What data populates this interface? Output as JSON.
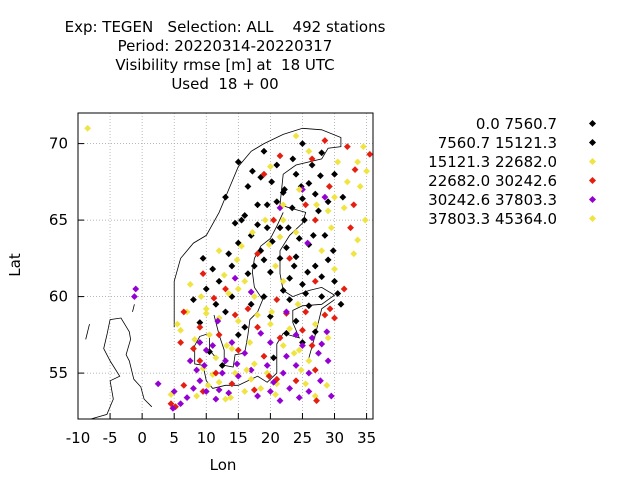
{
  "title_lines": [
    "Exp: TEGEN   Selection: ALL    492 stations",
    "Period: 20220314-20220317",
    "Visibility rmse [m] at  18 UTC",
    "Used  18 + 00"
  ],
  "chart_data": {
    "type": "scatter",
    "xlabel": "Lon",
    "ylabel": "Lat",
    "xlim": [
      -10,
      36
    ],
    "ylim": [
      52,
      72
    ],
    "xticks": [
      -10,
      -5,
      0,
      5,
      10,
      15,
      20,
      25,
      30,
      35
    ],
    "yticks": [
      55,
      60,
      65,
      70
    ],
    "grid": true,
    "legend_position": "right",
    "series": [
      {
        "name": "0.0 7560.7",
        "color": "#000000",
        "points": [
          [
            23.5,
            69.0
          ],
          [
            24.0,
            68.0
          ],
          [
            26.0,
            67.4
          ],
          [
            20.2,
            67.5
          ],
          [
            22.0,
            66.8
          ],
          [
            25.0,
            66.4
          ],
          [
            27.0,
            66.7
          ],
          [
            18.0,
            66.0
          ],
          [
            21.0,
            66.2
          ],
          [
            23.4,
            65.8
          ],
          [
            16.0,
            65.3
          ],
          [
            14.5,
            64.8
          ],
          [
            19.5,
            64.5
          ],
          [
            25.3,
            65.0
          ],
          [
            27.5,
            65.6
          ],
          [
            17.0,
            64.0
          ],
          [
            20.3,
            63.6
          ],
          [
            22.5,
            63.2
          ],
          [
            26.0,
            63.4
          ],
          [
            28.5,
            64.0
          ],
          [
            15.0,
            63.5
          ],
          [
            14.0,
            62.0
          ],
          [
            19.0,
            62.4
          ],
          [
            24.0,
            62.6
          ],
          [
            27.0,
            62.0
          ],
          [
            16.5,
            61.5
          ],
          [
            20.0,
            61.6
          ],
          [
            23.0,
            61.2
          ],
          [
            29.0,
            62.4
          ],
          [
            12.0,
            61.0
          ],
          [
            25.0,
            60.8
          ],
          [
            10.0,
            60.5
          ],
          [
            22.0,
            60.4
          ],
          [
            30.0,
            61.0
          ],
          [
            8.0,
            59.8
          ],
          [
            17.0,
            59.5
          ],
          [
            25.5,
            60.2
          ],
          [
            28.0,
            60.0
          ],
          [
            13.0,
            59.0
          ],
          [
            20.0,
            58.7
          ],
          [
            26.0,
            59.4
          ],
          [
            24.0,
            58.4
          ],
          [
            9.0,
            58.3
          ],
          [
            16.0,
            58.0
          ],
          [
            22.5,
            57.6
          ],
          [
            27.0,
            57.7
          ],
          [
            31.0,
            59.5
          ],
          [
            18.5,
            67.8
          ],
          [
            29.0,
            66.2
          ],
          [
            21.5,
            64.5
          ]
        ]
      },
      {
        "name": "7560.7 15121.3",
        "color": "#000000",
        "points": [
          [
            19.0,
            69.5
          ],
          [
            25.0,
            70.0
          ],
          [
            28.0,
            69.4
          ],
          [
            15.0,
            68.8
          ],
          [
            21.0,
            68.6
          ],
          [
            30.0,
            68.0
          ],
          [
            16.5,
            67.2
          ],
          [
            27.8,
            67.9
          ],
          [
            13.0,
            66.5
          ],
          [
            19.5,
            66.0
          ],
          [
            24.8,
            67.2
          ],
          [
            15.5,
            65.0
          ],
          [
            22.8,
            64.5
          ],
          [
            26.7,
            64.0
          ],
          [
            18.5,
            63.0
          ],
          [
            24.5,
            63.8
          ],
          [
            13.5,
            62.8
          ],
          [
            21.5,
            62.5
          ],
          [
            29.8,
            63.0
          ],
          [
            17.5,
            62.0
          ],
          [
            25.8,
            61.6
          ],
          [
            11.0,
            61.8
          ],
          [
            14.0,
            60.0
          ],
          [
            28.0,
            61.3
          ],
          [
            23.0,
            59.8
          ],
          [
            11.5,
            59.5
          ],
          [
            19.0,
            60.0
          ],
          [
            30.5,
            60.2
          ],
          [
            15.0,
            57.5
          ],
          [
            25.0,
            57.0
          ],
          [
            10.5,
            56.4
          ],
          [
            20.5,
            56.0
          ],
          [
            12.5,
            55.5
          ],
          [
            9.5,
            62.5
          ],
          [
            22.2,
            67.0
          ],
          [
            26.5,
            68.6
          ],
          [
            17.2,
            68.2
          ],
          [
            31.3,
            66.5
          ],
          [
            18.0,
            64.7
          ],
          [
            23.7,
            62.0
          ]
        ]
      },
      {
        "name": "15121.3 22682.0",
        "color": "#f0e442",
        "points": [
          [
            -8.5,
            71.0
          ],
          [
            24.0,
            70.5
          ],
          [
            34.5,
            69.8
          ],
          [
            20.0,
            68.5
          ],
          [
            30.5,
            68.8
          ],
          [
            27.2,
            66.0
          ],
          [
            34.0,
            67.2
          ],
          [
            22.0,
            65.0
          ],
          [
            31.5,
            65.8
          ],
          [
            17.2,
            64.2
          ],
          [
            24.0,
            64.2
          ],
          [
            28.0,
            63.0
          ],
          [
            14.8,
            62.4
          ],
          [
            20.8,
            62.0
          ],
          [
            33.0,
            62.8
          ],
          [
            16.0,
            61.0
          ],
          [
            22.0,
            61.0
          ],
          [
            30.0,
            61.8
          ],
          [
            7.5,
            60.8
          ],
          [
            17.5,
            60.0
          ],
          [
            24.3,
            59.5
          ],
          [
            7.0,
            59.0
          ],
          [
            12.0,
            58.6
          ],
          [
            20.0,
            58.2
          ],
          [
            6.0,
            57.8
          ],
          [
            10.5,
            57.5
          ],
          [
            16.8,
            57.0
          ],
          [
            22.0,
            56.8
          ],
          [
            11.5,
            56.0
          ],
          [
            17.5,
            55.6
          ],
          [
            26.0,
            55.8
          ],
          [
            9.5,
            55.3
          ],
          [
            14.5,
            55.0
          ],
          [
            19.5,
            55.0
          ],
          [
            12.0,
            54.4
          ],
          [
            21.0,
            54.3
          ],
          [
            16.0,
            53.8
          ],
          [
            8.5,
            53.5
          ],
          [
            13.0,
            53.3
          ],
          [
            27.0,
            53.5
          ],
          [
            24.5,
            56.5
          ],
          [
            23.0,
            57.9
          ],
          [
            34.8,
            65.0
          ],
          [
            26.0,
            69.5
          ],
          [
            13.5,
            60.2
          ],
          [
            10.0,
            58.9
          ],
          [
            29.0,
            57.3
          ],
          [
            18.0,
            58.8
          ],
          [
            15.5,
            63.3
          ],
          [
            21.5,
            63.9
          ],
          [
            33.6,
            68.8
          ],
          [
            11.0,
            54.9
          ],
          [
            14.0,
            56.6
          ],
          [
            4.5,
            53.6
          ],
          [
            18.5,
            54.0
          ]
        ]
      },
      {
        "name": "22682.0 30242.6",
        "color": "#e51e10",
        "points": [
          [
            28.5,
            70.2
          ],
          [
            32.0,
            69.8
          ],
          [
            35.5,
            69.3
          ],
          [
            21.5,
            69.2
          ],
          [
            26.5,
            69.0
          ],
          [
            33.2,
            68.3
          ],
          [
            19.0,
            68.0
          ],
          [
            29.2,
            67.2
          ],
          [
            25.5,
            66.0
          ],
          [
            33.0,
            66.0
          ],
          [
            20.5,
            65.0
          ],
          [
            27.0,
            65.0
          ],
          [
            32.5,
            64.5
          ],
          [
            18.0,
            62.8
          ],
          [
            23.0,
            62.5
          ],
          [
            9.5,
            61.5
          ],
          [
            27.0,
            61.0
          ],
          [
            13.0,
            60.5
          ],
          [
            21.0,
            59.8
          ],
          [
            6.5,
            59.0
          ],
          [
            14.5,
            58.8
          ],
          [
            25.5,
            59.0
          ],
          [
            9.0,
            58.0
          ],
          [
            18.0,
            58.0
          ],
          [
            28.5,
            58.8
          ],
          [
            12.0,
            57.5
          ],
          [
            21.5,
            57.3
          ],
          [
            25.0,
            57.8
          ],
          [
            6.0,
            57.0
          ],
          [
            15.0,
            56.5
          ],
          [
            26.5,
            56.8
          ],
          [
            9.0,
            55.8
          ],
          [
            19.0,
            56.1
          ],
          [
            27.0,
            55.2
          ],
          [
            11.5,
            55.0
          ],
          [
            21.0,
            54.6
          ],
          [
            6.5,
            54.2
          ],
          [
            14.0,
            54.3
          ],
          [
            24.0,
            54.5
          ],
          [
            4.5,
            53.0
          ],
          [
            9.5,
            53.8
          ],
          [
            17.5,
            53.9
          ],
          [
            27.2,
            53.2
          ],
          [
            31.5,
            60.5
          ],
          [
            29.3,
            59.2
          ],
          [
            16.5,
            59.2
          ],
          [
            11.2,
            59.9
          ],
          [
            22.5,
            58.9
          ],
          [
            8.0,
            56.6
          ],
          [
            19.8,
            54.8
          ],
          [
            5.2,
            52.8
          ],
          [
            30.0,
            58.6
          ]
        ]
      },
      {
        "name": "30242.6 37803.3",
        "color": "#9400d3",
        "points": [
          [
            -1.0,
            60.5
          ],
          [
            -1.2,
            60.0
          ],
          [
            25.0,
            67.0
          ],
          [
            28.5,
            66.5
          ],
          [
            21.5,
            65.8
          ],
          [
            25.8,
            63.5
          ],
          [
            14.5,
            61.2
          ],
          [
            17.0,
            60.3
          ],
          [
            22.5,
            59.0
          ],
          [
            11.8,
            58.4
          ],
          [
            18.5,
            57.6
          ],
          [
            24.0,
            57.5
          ],
          [
            28.8,
            57.7
          ],
          [
            9.0,
            57.0
          ],
          [
            14.0,
            57.0
          ],
          [
            20.0,
            57.0
          ],
          [
            26.5,
            57.3
          ],
          [
            10.0,
            56.5
          ],
          [
            16.0,
            56.3
          ],
          [
            22.5,
            56.1
          ],
          [
            27.5,
            56.3
          ],
          [
            7.5,
            55.8
          ],
          [
            13.0,
            55.8
          ],
          [
            19.5,
            55.5
          ],
          [
            24.0,
            55.5
          ],
          [
            29.0,
            55.8
          ],
          [
            8.5,
            55.2
          ],
          [
            12.5,
            55.0
          ],
          [
            17.0,
            55.2
          ],
          [
            22.0,
            55.0
          ],
          [
            26.0,
            55.0
          ],
          [
            2.5,
            54.3
          ],
          [
            9.0,
            54.5
          ],
          [
            15.0,
            54.8
          ],
          [
            20.5,
            54.4
          ],
          [
            27.8,
            54.5
          ],
          [
            5.0,
            53.8
          ],
          [
            10.0,
            53.8
          ],
          [
            13.5,
            53.7
          ],
          [
            18.0,
            53.5
          ],
          [
            24.5,
            53.4
          ],
          [
            7.0,
            53.4
          ],
          [
            11.5,
            53.3
          ],
          [
            21.5,
            53.2
          ],
          [
            26.0,
            53.8
          ],
          [
            29.5,
            53.5
          ],
          [
            6.0,
            53.0
          ],
          [
            4.8,
            52.7
          ],
          [
            11.0,
            56.8
          ],
          [
            9.7,
            55.5
          ],
          [
            8.0,
            54.0
          ],
          [
            12.0,
            53.9
          ],
          [
            25.0,
            56.8
          ],
          [
            23.0,
            54.0
          ],
          [
            14.8,
            55.6
          ],
          [
            20.0,
            53.8
          ],
          [
            28.0,
            56.9
          ]
        ]
      },
      {
        "name": "37803.3 45364.0",
        "color": "#f0e442",
        "points": [
          [
            32.0,
            67.5
          ],
          [
            35.0,
            68.2
          ],
          [
            24.5,
            67.0
          ],
          [
            30.0,
            66.5
          ],
          [
            22.0,
            66.0
          ],
          [
            19.2,
            65.0
          ],
          [
            29.5,
            64.5
          ],
          [
            12.0,
            63.0
          ],
          [
            19.8,
            63.4
          ],
          [
            15.0,
            60.5
          ],
          [
            10.0,
            59.2
          ],
          [
            5.5,
            58.2
          ],
          [
            20.2,
            59.0
          ],
          [
            8.2,
            57.2
          ],
          [
            13.2,
            56.8
          ],
          [
            23.7,
            56.3
          ],
          [
            16.3,
            55.2
          ],
          [
            24.8,
            55.2
          ],
          [
            10.3,
            54.2
          ],
          [
            17.0,
            54.6
          ],
          [
            25.5,
            54.3
          ],
          [
            13.8,
            53.4
          ],
          [
            20.8,
            53.6
          ],
          [
            28.8,
            54.2
          ],
          [
            15.0,
            58.4
          ],
          [
            27.0,
            58.2
          ],
          [
            12.8,
            61.4
          ],
          [
            9.2,
            60.0
          ],
          [
            29.0,
            65.6
          ],
          [
            33.6,
            63.7
          ]
        ]
      }
    ]
  },
  "colors": {
    "black": "#000000",
    "yellow": "#f0e442",
    "red": "#e51e10",
    "purple": "#9400d3",
    "grid": "#a0a0a0"
  }
}
